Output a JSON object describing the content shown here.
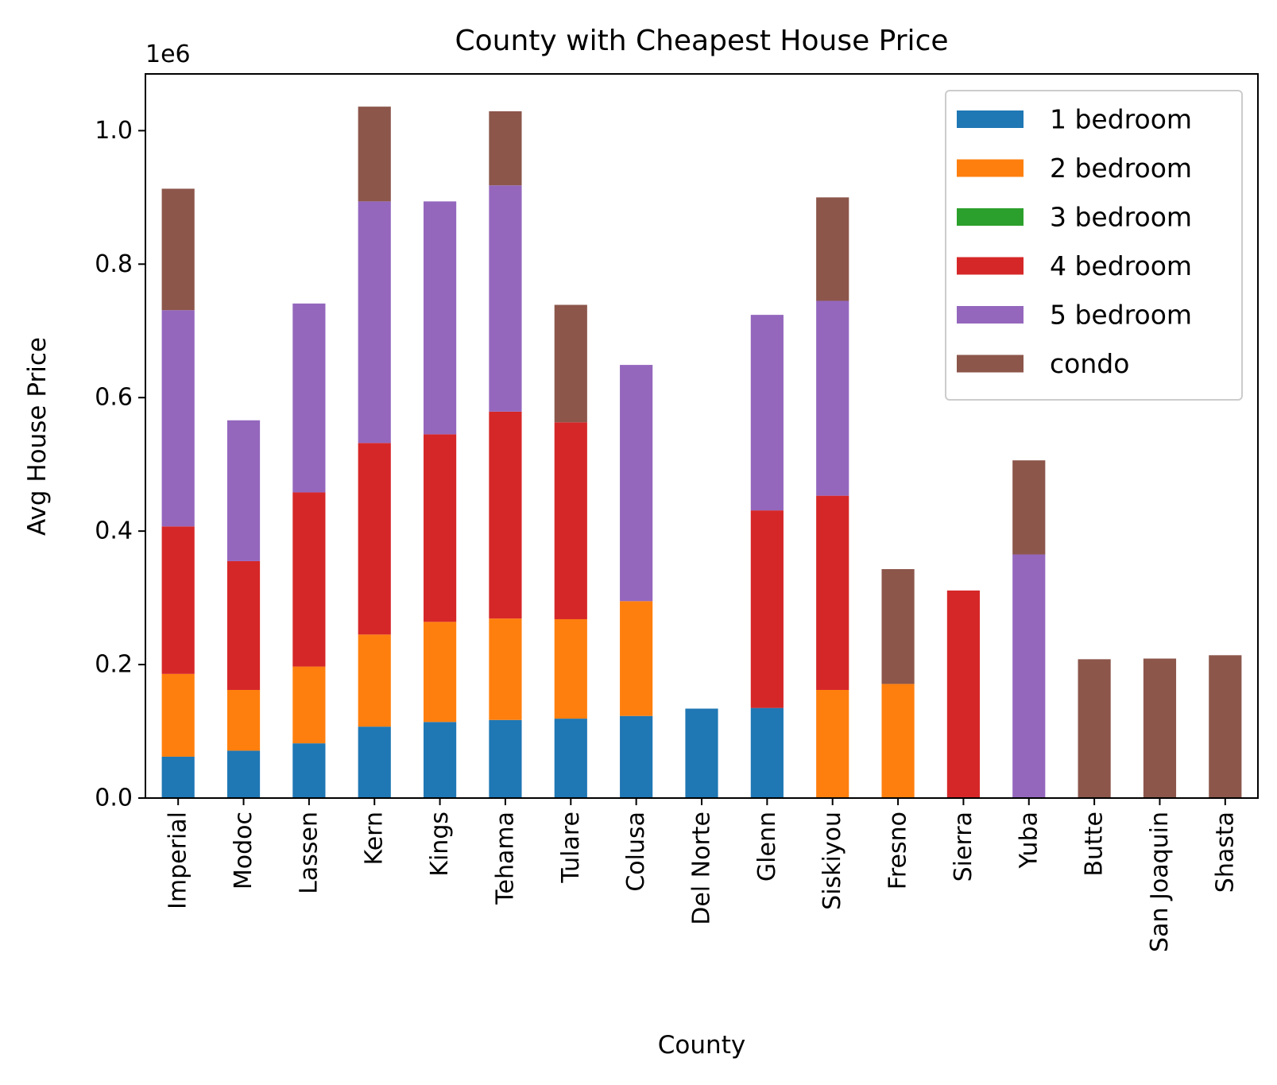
{
  "chart_data": {
    "type": "bar",
    "stacked": true,
    "title": "County with Cheapest House Price",
    "xlabel": "County",
    "ylabel": "Avg House Price",
    "y_offset_label": "1e6",
    "y_scale_factor": 1000000,
    "ylim": [
      0,
      1085000
    ],
    "yticks": [
      0,
      200000,
      400000,
      600000,
      800000,
      1000000
    ],
    "ytick_labels": [
      "0.0",
      "0.2",
      "0.4",
      "0.6",
      "0.8",
      "1.0"
    ],
    "grid": false,
    "legend_position": "top-right",
    "categories": [
      "Imperial",
      "Modoc",
      "Lassen",
      "Kern",
      "Kings",
      "Tehama",
      "Tulare",
      "Colusa",
      "Del Norte",
      "Glenn",
      "Siskiyou",
      "Fresno",
      "Sierra",
      "Yuba",
      "Butte",
      "San Joaquin",
      "Shasta"
    ],
    "series": [
      {
        "name": "1 bedroom",
        "color": "#1f77b4",
        "values": [
          62000,
          71000,
          82000,
          107000,
          114000,
          117000,
          119000,
          123000,
          134000,
          135000,
          0,
          0,
          0,
          0,
          0,
          0,
          0
        ]
      },
      {
        "name": "2 bedroom",
        "color": "#ff7f0e",
        "values": [
          124000,
          91000,
          115000,
          138000,
          150000,
          152000,
          149000,
          172000,
          0,
          0,
          162000,
          171000,
          0,
          0,
          0,
          0,
          0
        ]
      },
      {
        "name": "3 bedroom",
        "color": "#2ca02c",
        "values": [
          0,
          0,
          0,
          0,
          0,
          0,
          0,
          0,
          0,
          0,
          0,
          0,
          0,
          0,
          0,
          0,
          0
        ]
      },
      {
        "name": "4 bedroom",
        "color": "#d62728",
        "values": [
          221000,
          193000,
          261000,
          287000,
          281000,
          310000,
          295000,
          0,
          0,
          296000,
          291000,
          0,
          311000,
          0,
          0,
          0,
          0
        ]
      },
      {
        "name": "5 bedroom",
        "color": "#9467bd",
        "values": [
          324000,
          211000,
          283000,
          362000,
          349000,
          339000,
          0,
          354000,
          0,
          293000,
          292000,
          0,
          0,
          365000,
          0,
          0,
          0
        ]
      },
      {
        "name": "condo",
        "color": "#8c564b",
        "values": [
          182000,
          0,
          0,
          142000,
          0,
          111000,
          176000,
          0,
          0,
          0,
          155000,
          172000,
          0,
          141000,
          208000,
          209000,
          214000
        ]
      }
    ]
  }
}
